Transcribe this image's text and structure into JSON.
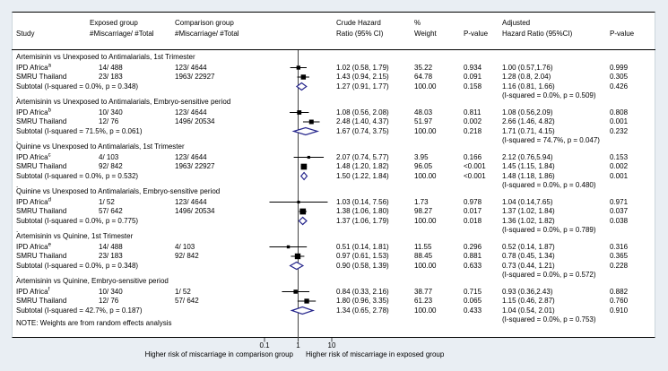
{
  "chart_data": {
    "type": "scatter",
    "subtype": "forest_plot_meta_analysis",
    "x_scale": "log10",
    "xlim": [
      0.1,
      10
    ],
    "columns": {
      "study": "Study",
      "exposed_1": "Exposed group",
      "exposed_2": "#Miscarriage/ #Total",
      "comparison_1": "Comparison group",
      "comparison_2": "#Miscarriage/ #Total",
      "crude_1": "Crude Hazard",
      "crude_2": "Ratio (95% CI)",
      "weight_1": "%",
      "weight_2": "Weight",
      "pvalue": "P-value",
      "adjusted_1": "Adjusted",
      "adjusted_2": "Hazard Ratio (95%CI)",
      "pvalue2": "P-value"
    },
    "axis": {
      "ticks": [
        {
          "value": 0.1,
          "label": "0.1"
        },
        {
          "value": 1,
          "label": "1"
        },
        {
          "value": 10,
          "label": "10"
        }
      ],
      "left_caption": "Higher risk of miscarriage in comparison group",
      "right_caption": "Higher risk of miscarriage in exposed group"
    },
    "section_separator": ".",
    "note": "NOTE: Weights are from random effects analysis",
    "colors": {
      "diamond": "#26268c",
      "marker": "#000000",
      "axis_line": "#444444"
    },
    "sections": [
      {
        "heading": "Artemisinin vs Unexposed to Antimalarials, 1st Trimester",
        "studies": [
          {
            "name": "IPD Africa",
            "sup": "a",
            "exposed": "14/ 488",
            "comparison": "123/ 4644",
            "crude": {
              "est": 1.02,
              "lo": 0.58,
              "hi": 1.79,
              "label": "1.02 (0.58, 1.79)"
            },
            "weight": "35.22",
            "p": "0.934",
            "adj": "1.00 (0.57,1.76)",
            "adj_p": "0.999"
          },
          {
            "name": "SMRU Thailand",
            "sup": "",
            "exposed": "23/ 183",
            "comparison": "1963/ 22927",
            "crude": {
              "est": 1.43,
              "lo": 0.94,
              "hi": 2.15,
              "label": "1.43 (0.94, 2.15)"
            },
            "weight": "64.78",
            "p": "0.091",
            "adj": "1.28 (0.8, 2.04)",
            "adj_p": "0.305"
          }
        ],
        "subtotal": {
          "label": "Subtotal  (I-squared = 0.0%, p = 0.348)",
          "crude": {
            "est": 1.27,
            "lo": 0.91,
            "hi": 1.77,
            "label": "1.27 (0.91, 1.77)"
          },
          "weight": "100.00",
          "p": "0.158",
          "adj": "1.16 (0.81, 1.66)",
          "adj_p": "0.426",
          "adj_note": "(I-squared = 0.0%, p = 0.509)"
        }
      },
      {
        "heading": "Artemisinin vs Unexposed to Antimalarials, Embryo-sensitive period",
        "studies": [
          {
            "name": "IPD Africa",
            "sup": "b",
            "exposed": "10/ 340",
            "comparison": "123/ 4644",
            "crude": {
              "est": 1.08,
              "lo": 0.56,
              "hi": 2.08,
              "label": "1.08 (0.56, 2.08)"
            },
            "weight": "48.03",
            "p": "0.811",
            "adj": "1.08 (0.56,2.09)",
            "adj_p": "0.808"
          },
          {
            "name": "SMRU Thailand",
            "sup": "",
            "exposed": "12/ 76",
            "comparison": "1496/ 20534",
            "crude": {
              "est": 2.48,
              "lo": 1.4,
              "hi": 4.37,
              "label": "2.48 (1.40, 4.37)"
            },
            "weight": "51.97",
            "p": "0.002",
            "adj": "2.66 (1.46, 4.82)",
            "adj_p": "0.001"
          }
        ],
        "subtotal": {
          "label": "Subtotal  (I-squared = 71.5%, p = 0.061)",
          "crude": {
            "est": 1.67,
            "lo": 0.74,
            "hi": 3.75,
            "label": "1.67 (0.74, 3.75)"
          },
          "weight": "100.00",
          "p": "0.218",
          "adj": "1.71 (0.71, 4.15)",
          "adj_p": "0.232",
          "adj_note": "(I-squared = 74.7%, p = 0.047)"
        }
      },
      {
        "heading": "Quinine vs Unexposed to Antimalarials, 1st Trimester",
        "studies": [
          {
            "name": "IPD Africa",
            "sup": "c",
            "exposed": "4/ 103",
            "comparison": "123/ 4644",
            "crude": {
              "est": 2.07,
              "lo": 0.74,
              "hi": 5.77,
              "label": "2.07 (0.74, 5.77)"
            },
            "weight": "3.95",
            "p": "0.166",
            "adj": "2.12 (0.76,5.94)",
            "adj_p": "0.153"
          },
          {
            "name": "SMRU Thailand",
            "sup": "",
            "exposed": "92/ 842",
            "comparison": "1963/ 22927",
            "crude": {
              "est": 1.48,
              "lo": 1.2,
              "hi": 1.82,
              "label": "1.48 (1.20, 1.82)"
            },
            "weight": "96.05",
            "p": "<0.001",
            "adj": "1.45 (1.15, 1.84)",
            "adj_p": "0.002"
          }
        ],
        "subtotal": {
          "label": "Subtotal  (I-squared = 0.0%, p = 0.532)",
          "crude": {
            "est": 1.5,
            "lo": 1.22,
            "hi": 1.84,
            "label": "1.50 (1.22, 1.84)"
          },
          "weight": "100.00",
          "p": "<0.001",
          "adj": "1.48 (1.18, 1.86)",
          "adj_p": "0.001",
          "adj_note": "(I-squared = 0.0%, p = 0.480)"
        }
      },
      {
        "heading": "Quinine vs Unexposed to Antimalarials, Embryo-sensitive period",
        "studies": [
          {
            "name": "IPD Africa",
            "sup": "d",
            "exposed": "1/ 52",
            "comparison": "123/ 4644",
            "crude": {
              "est": 1.03,
              "lo": 0.14,
              "hi": 7.56,
              "label": "1.03 (0.14, 7.56)"
            },
            "weight": "1.73",
            "p": "0.978",
            "adj": "1.04 (0.14,7.65)",
            "adj_p": "0.971"
          },
          {
            "name": "SMRU Thailand",
            "sup": "",
            "exposed": "57/ 642",
            "comparison": "1496/ 20534",
            "crude": {
              "est": 1.38,
              "lo": 1.06,
              "hi": 1.8,
              "label": "1.38 (1.06, 1.80)"
            },
            "weight": "98.27",
            "p": "0.017",
            "adj": "1.37 (1.02, 1.84)",
            "adj_p": "0.037"
          }
        ],
        "subtotal": {
          "label": "Subtotal  (I-squared = 0.0%, p = 0.775)",
          "crude": {
            "est": 1.37,
            "lo": 1.06,
            "hi": 1.79,
            "label": "1.37 (1.06, 1.79)"
          },
          "weight": "100.00",
          "p": "0.018",
          "adj": "1.36 (1.02, 1.82)",
          "adj_p": "0.038",
          "adj_note": "(I-squared = 0.0%, p = 0.789)"
        }
      },
      {
        "heading": "Artemisinin vs Quinine, 1st Trimester",
        "studies": [
          {
            "name": "IPD Africa",
            "sup": "e",
            "exposed": "14/ 488",
            "comparison": "4/ 103",
            "crude": {
              "est": 0.51,
              "lo": 0.14,
              "hi": 1.81,
              "label": "0.51 (0.14, 1.81)"
            },
            "weight": "11.55",
            "p": "0.296",
            "adj": "0.52 (0.14, 1.87)",
            "adj_p": "0.316"
          },
          {
            "name": "SMRU Thailand",
            "sup": "",
            "exposed": "23/ 183",
            "comparison": "92/ 842",
            "crude": {
              "est": 0.97,
              "lo": 0.61,
              "hi": 1.53,
              "label": "0.97 (0.61, 1.53)"
            },
            "weight": "88.45",
            "p": "0.881",
            "adj": "0.78 (0.45, 1.34)",
            "adj_p": "0.365"
          }
        ],
        "subtotal": {
          "label": "Subtotal  (I-squared = 0.0%, p = 0.348)",
          "crude": {
            "est": 0.9,
            "lo": 0.58,
            "hi": 1.39,
            "label": "0.90 (0.58, 1.39)"
          },
          "weight": "100.00",
          "p": "0.633",
          "adj": "0.73 (0.44, 1.21)",
          "adj_p": "0.228",
          "adj_note": "(I-squared = 0.0%, p = 0.572)"
        }
      },
      {
        "heading": "Artemisinin vs Quinine, Embryo-sensitive period",
        "studies": [
          {
            "name": "IPD Africa",
            "sup": "f",
            "exposed": "10/ 340",
            "comparison": "1/ 52",
            "crude": {
              "est": 0.84,
              "lo": 0.33,
              "hi": 2.16,
              "label": "0.84 (0.33, 2.16)"
            },
            "weight": "38.77",
            "p": "0.715",
            "adj": "0.93 (0.36,2.43)",
            "adj_p": "0.882"
          },
          {
            "name": "SMRU Thailand",
            "sup": "",
            "exposed": "12/ 76",
            "comparison": "57/ 642",
            "crude": {
              "est": 1.8,
              "lo": 0.96,
              "hi": 3.35,
              "label": "1.80 (0.96, 3.35)"
            },
            "weight": "61.23",
            "p": "0.065",
            "adj": "1.15 (0.46, 2.87)",
            "adj_p": "0.760"
          }
        ],
        "subtotal": {
          "label": "Subtotal  (I-squared = 42.7%, p = 0.187)",
          "crude": {
            "est": 1.34,
            "lo": 0.65,
            "hi": 2.78,
            "label": "1.34 (0.65, 2.78)"
          },
          "weight": "100.00",
          "p": "0.433",
          "adj": "1.04 (0.54, 2.01)",
          "adj_p": "0.910",
          "adj_note": "(I-squared = 0.0%, p = 0.753)"
        }
      }
    ]
  }
}
